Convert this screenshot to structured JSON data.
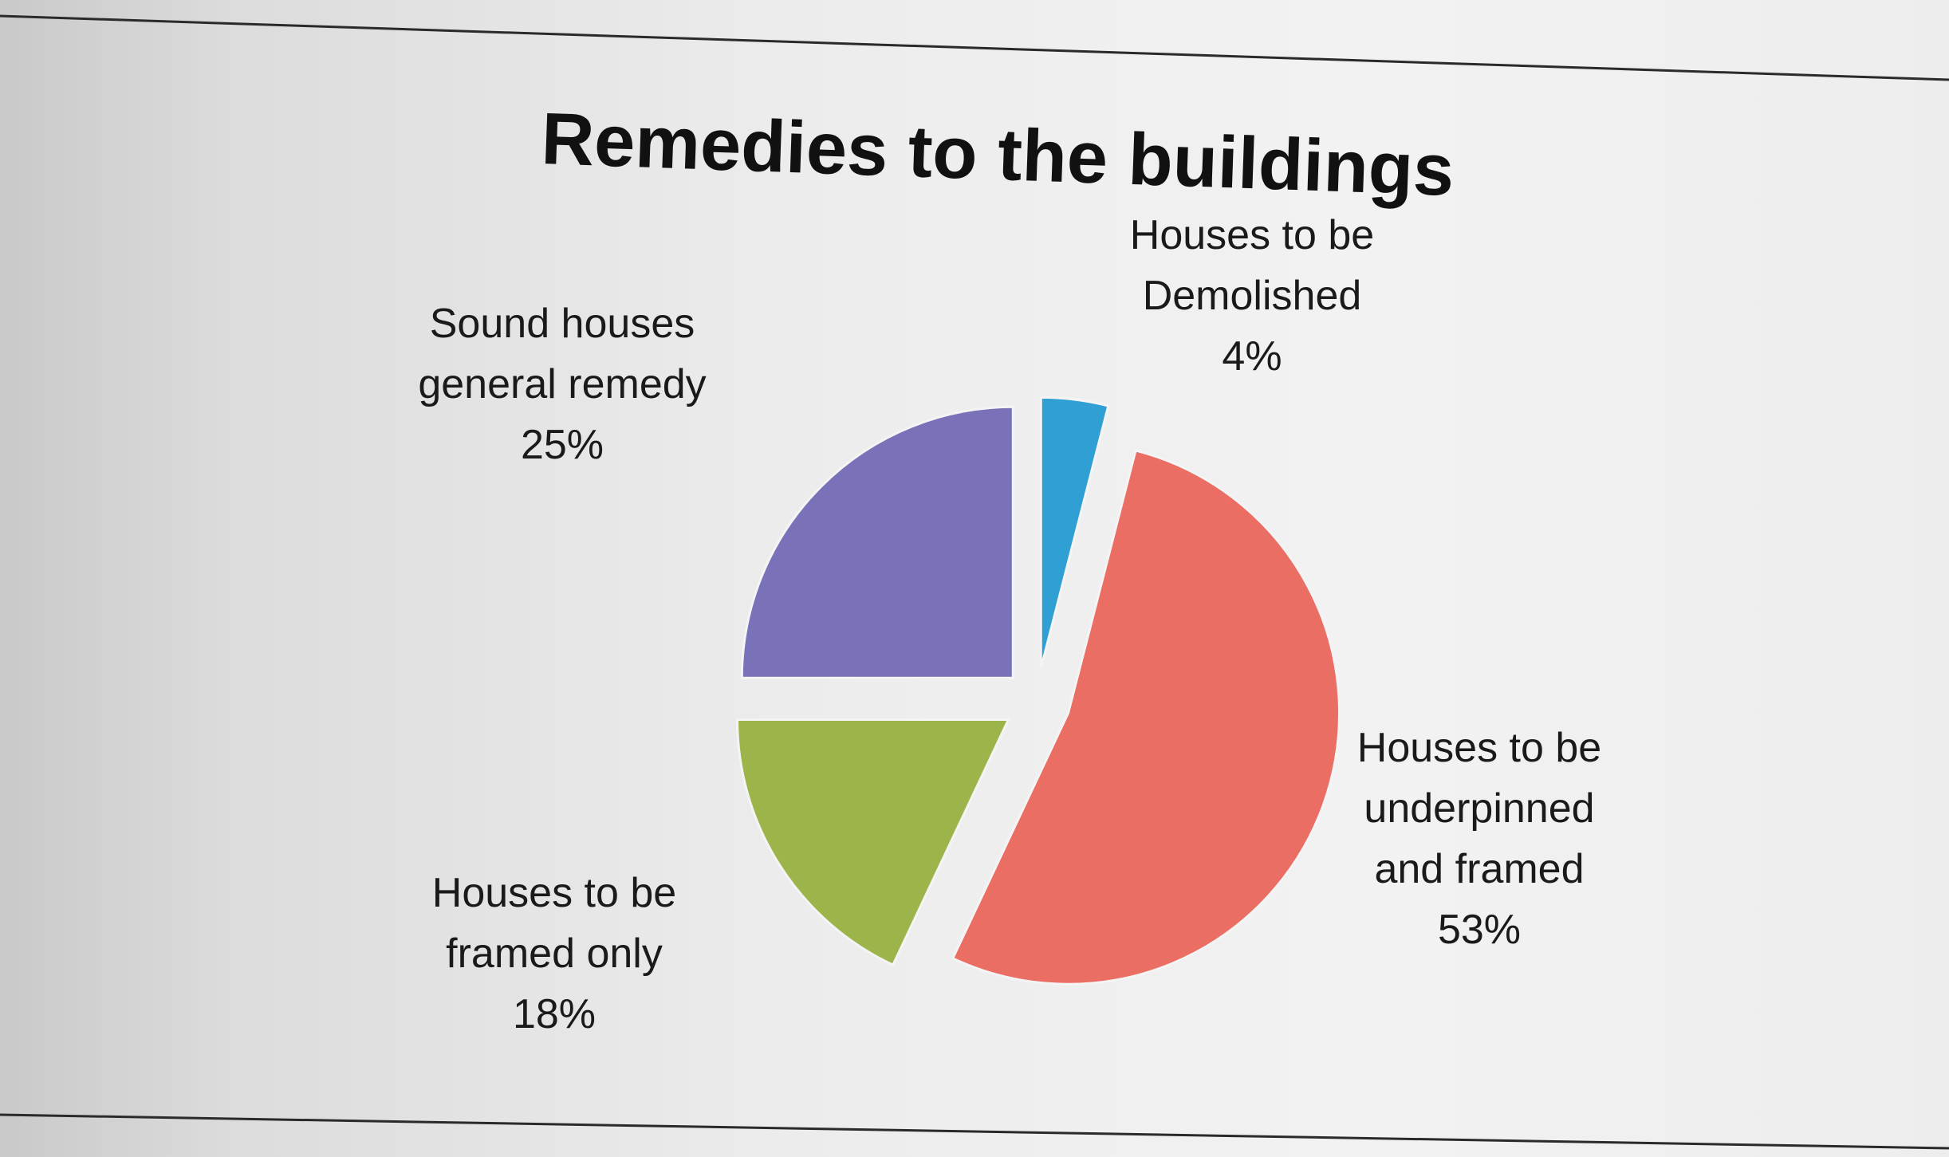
{
  "chart_data": {
    "type": "pie",
    "title": "Remedies to the buildings",
    "slices": [
      {
        "label_lines": [
          "Houses to be",
          "Demolished",
          "4%"
        ],
        "value": 4,
        "color": "#2f9fd4"
      },
      {
        "label_lines": [
          "Houses to be",
          "underpinned",
          "and framed",
          "53%"
        ],
        "value": 53,
        "color": "#ea6e63"
      },
      {
        "label_lines": [
          "Houses to be",
          "framed only",
          "18%"
        ],
        "value": 18,
        "color": "#9db44a"
      },
      {
        "label_lines": [
          "Sound houses",
          "general remedy",
          "25%"
        ],
        "value": 25,
        "color": "#7a72b8"
      }
    ],
    "exploded": true
  }
}
